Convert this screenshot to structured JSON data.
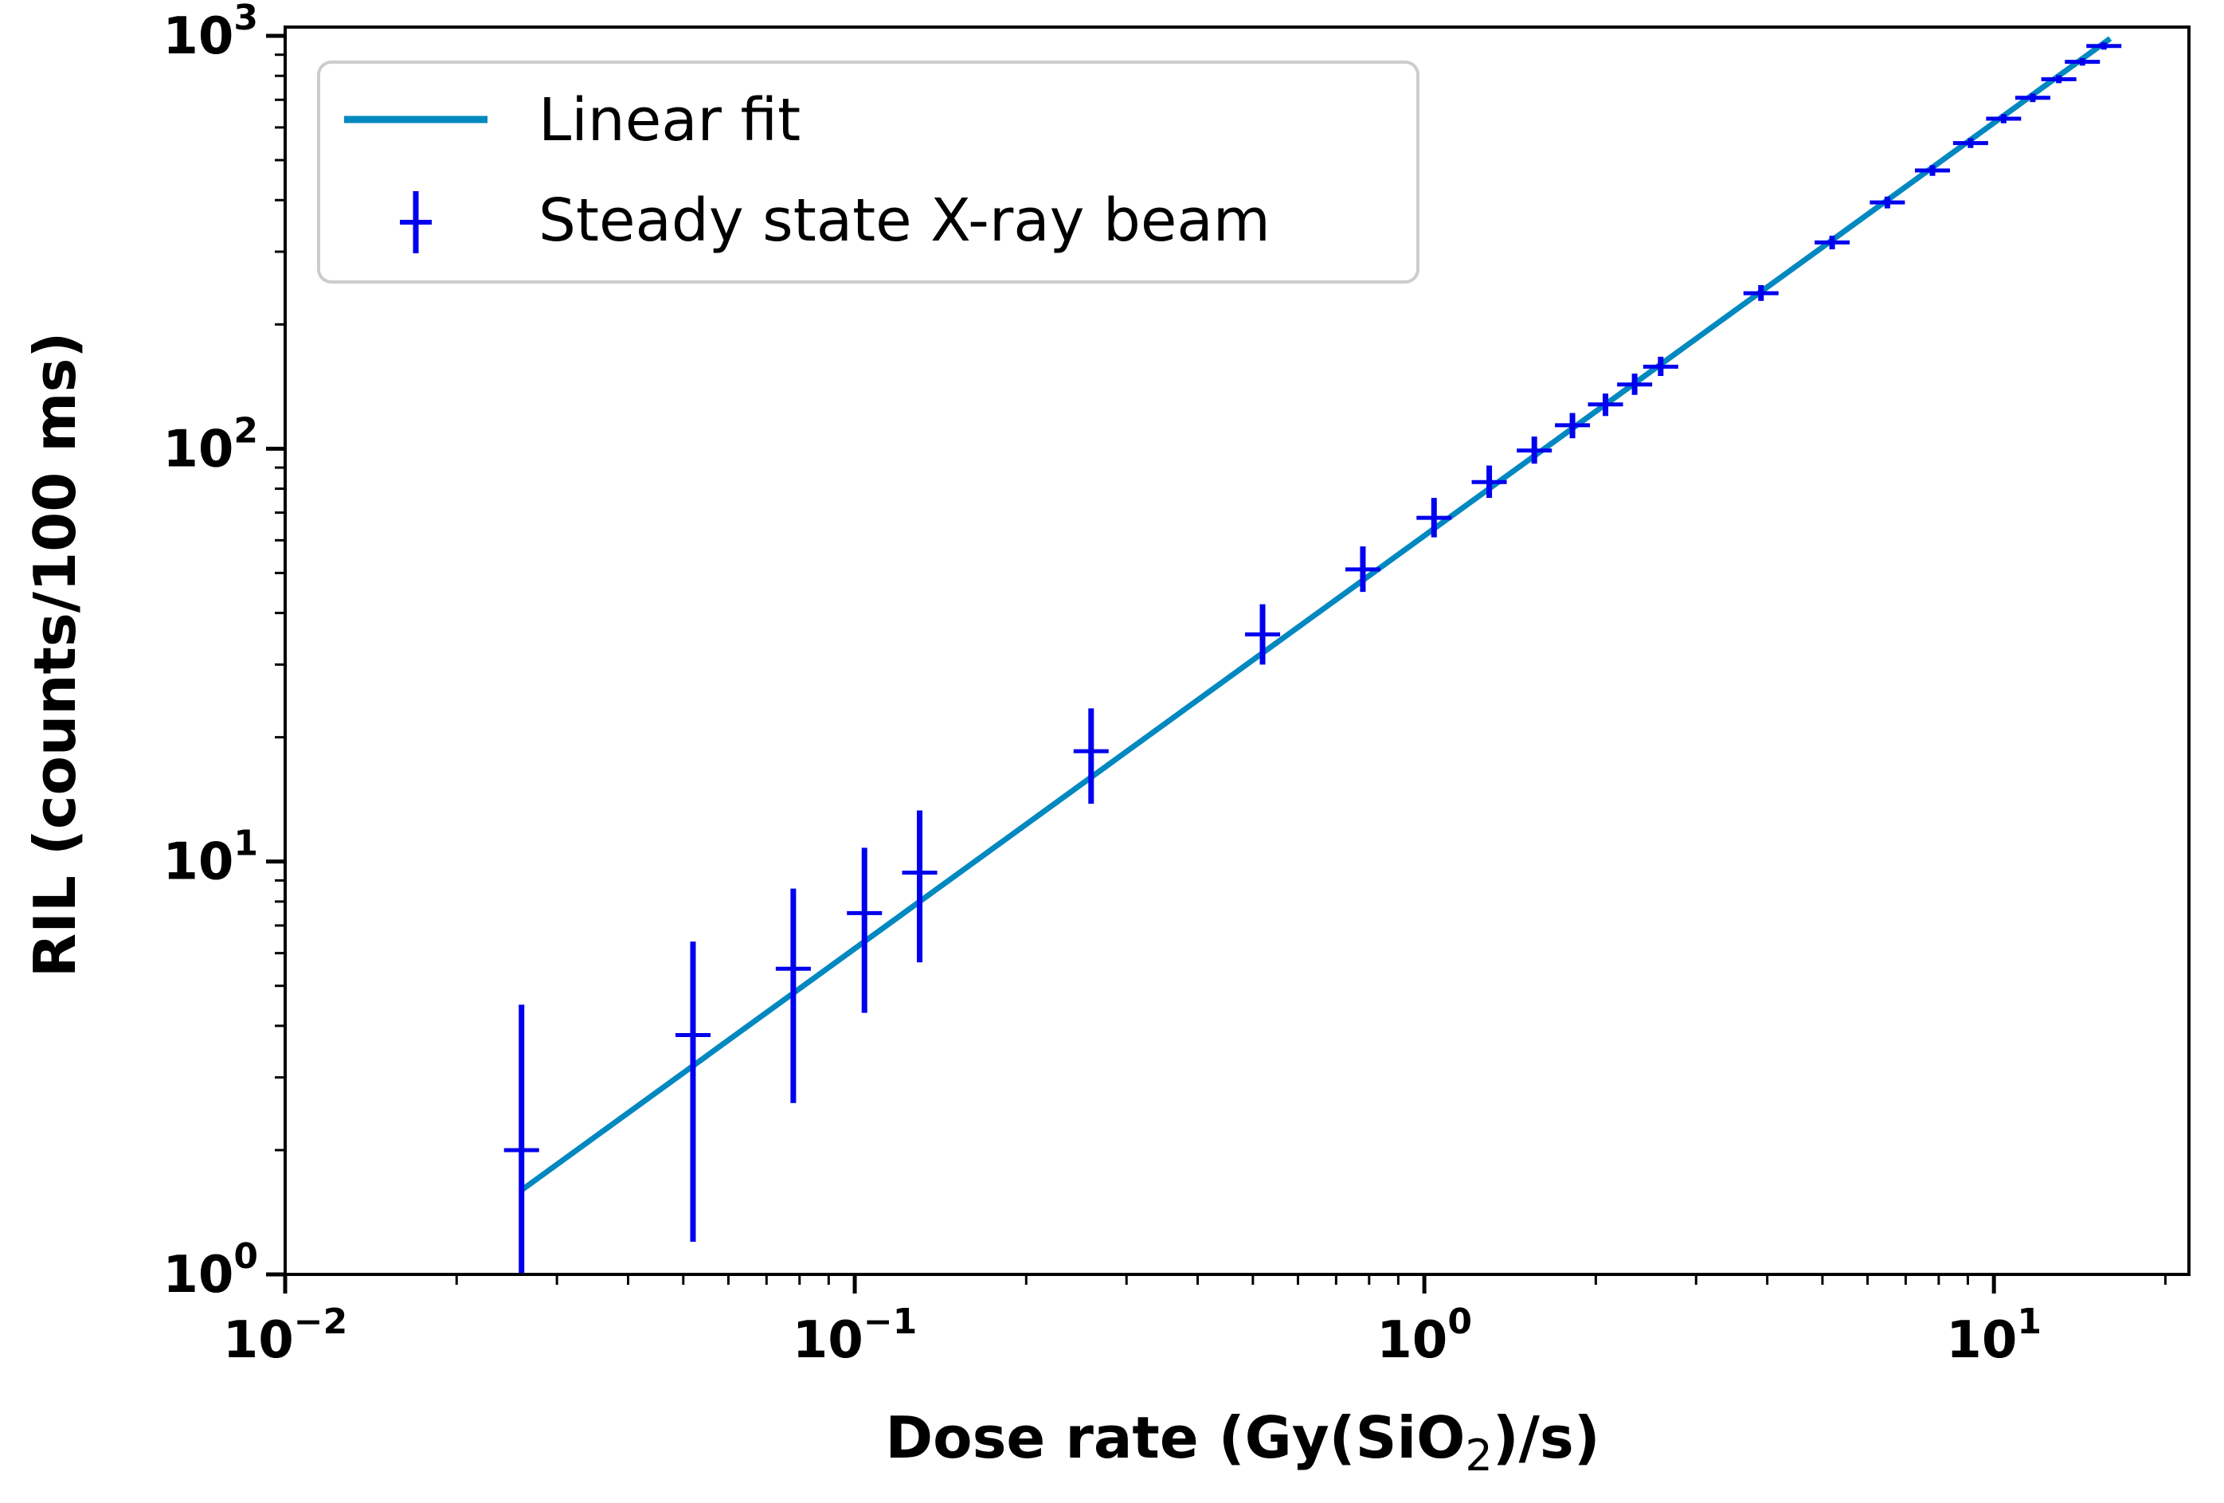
{
  "chart_data": {
    "type": "scatter",
    "xscale": "log",
    "yscale": "log",
    "xlim": [
      0.01,
      22
    ],
    "ylim": [
      1,
      1050
    ],
    "xlabel": {
      "main": "Dose rate (Gy(SiO",
      "sub": "2",
      "end": ")/s)"
    },
    "ylabel": "RIL (counts/100 ms)",
    "xticks": [
      {
        "value": 0.01,
        "base": "10",
        "exp": "−2"
      },
      {
        "value": 0.1,
        "base": "10",
        "exp": "−1"
      },
      {
        "value": 1,
        "base": "10",
        "exp": "0"
      },
      {
        "value": 10,
        "base": "10",
        "exp": "1"
      }
    ],
    "yticks": [
      {
        "value": 1,
        "base": "10",
        "exp": "0"
      },
      {
        "value": 10,
        "base": "10",
        "exp": "1"
      },
      {
        "value": 100,
        "base": "10",
        "exp": "2"
      },
      {
        "value": 1000,
        "base": "10",
        "exp": "3"
      }
    ],
    "legend": {
      "position": "upper-left",
      "entries": [
        {
          "label": "Linear fit",
          "marker": "line"
        },
        {
          "label": "Steady state X-ray beam",
          "marker": "errorbar"
        }
      ]
    },
    "series": [
      {
        "name": "Steady state X-ray beam",
        "kind": "errorbar",
        "color": "#0000ee",
        "points": [
          {
            "x": 0.026,
            "y": 2.0,
            "ylow": 1.0,
            "yhigh": 4.5
          },
          {
            "x": 0.052,
            "y": 3.8,
            "ylow": 1.2,
            "yhigh": 6.4
          },
          {
            "x": 0.078,
            "y": 5.5,
            "ylow": 2.6,
            "yhigh": 8.6
          },
          {
            "x": 0.104,
            "y": 7.5,
            "ylow": 4.3,
            "yhigh": 10.8
          },
          {
            "x": 0.13,
            "y": 9.4,
            "ylow": 5.7,
            "yhigh": 13.3
          },
          {
            "x": 0.26,
            "y": 18.5,
            "ylow": 13.8,
            "yhigh": 23.5
          },
          {
            "x": 0.52,
            "y": 35.5,
            "ylow": 30.0,
            "yhigh": 42.0
          },
          {
            "x": 0.78,
            "y": 51.0,
            "ylow": 45.0,
            "yhigh": 58.0
          },
          {
            "x": 1.04,
            "y": 68.0,
            "ylow": 61.0,
            "yhigh": 76.0
          },
          {
            "x": 1.3,
            "y": 83.0,
            "ylow": 76.0,
            "yhigh": 91.0
          },
          {
            "x": 1.56,
            "y": 99.0,
            "ylow": 92.0,
            "yhigh": 107.0
          },
          {
            "x": 1.82,
            "y": 114.0,
            "ylow": 106.0,
            "yhigh": 122.0
          },
          {
            "x": 2.08,
            "y": 128.0,
            "ylow": 120.0,
            "yhigh": 136.0
          },
          {
            "x": 2.34,
            "y": 143.0,
            "ylow": 135.0,
            "yhigh": 152.0
          },
          {
            "x": 2.6,
            "y": 158.0,
            "ylow": 150.0,
            "yhigh": 167.0
          },
          {
            "x": 3.9,
            "y": 238.0,
            "ylow": 228.0,
            "yhigh": 249.0
          },
          {
            "x": 5.2,
            "y": 316.0,
            "ylow": 304.0,
            "yhigh": 328.0
          },
          {
            "x": 6.5,
            "y": 395.0,
            "ylow": 382.0,
            "yhigh": 408.0
          },
          {
            "x": 7.8,
            "y": 472.0,
            "ylow": 458.0,
            "yhigh": 486.0
          },
          {
            "x": 9.1,
            "y": 550.0,
            "ylow": 535.0,
            "yhigh": 565.0
          },
          {
            "x": 10.4,
            "y": 630.0,
            "ylow": 614.0,
            "yhigh": 646.0
          },
          {
            "x": 11.7,
            "y": 708.0,
            "ylow": 691.0,
            "yhigh": 725.0
          },
          {
            "x": 13.0,
            "y": 785.0,
            "ylow": 768.0,
            "yhigh": 803.0
          },
          {
            "x": 14.3,
            "y": 865.0,
            "ylow": 847.0,
            "yhigh": 883.0
          },
          {
            "x": 15.6,
            "y": 945.0,
            "ylow": 926.0,
            "yhigh": 964.0
          }
        ]
      },
      {
        "name": "Linear fit",
        "kind": "line",
        "color": "#0088c0",
        "points": [
          {
            "x": 0.026,
            "y": 1.6
          },
          {
            "x": 16.0,
            "y": 985.0
          }
        ]
      }
    ]
  }
}
